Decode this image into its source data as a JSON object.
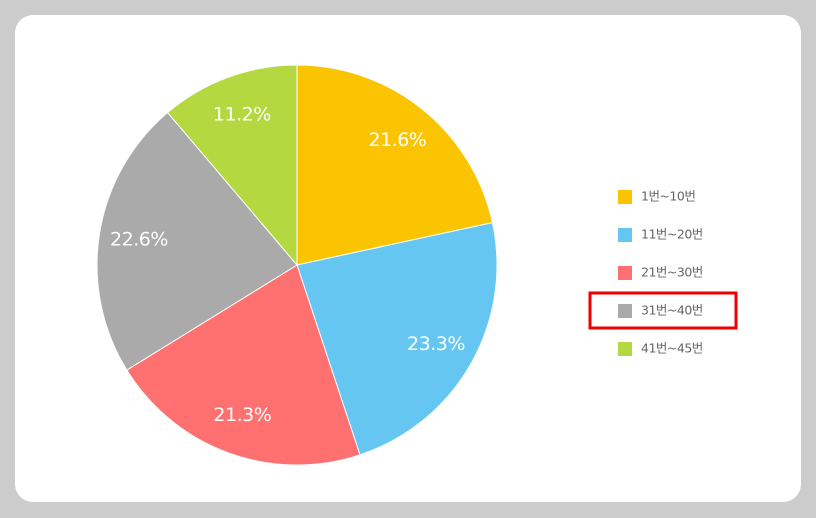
{
  "chart_data": {
    "type": "pie",
    "categories": [
      "1번~10번",
      "11번~20번",
      "21번~30번",
      "31번~40번",
      "41번~45번"
    ],
    "values": [
      21.6,
      23.3,
      21.3,
      22.6,
      11.2
    ],
    "value_labels": [
      "21.6%",
      "23.3%",
      "21.3%",
      "22.6%",
      "11.2%"
    ],
    "colors": [
      "#fac500",
      "#66c6f2",
      "#ff7070",
      "#aaaaaa",
      "#b4d940"
    ]
  }
}
